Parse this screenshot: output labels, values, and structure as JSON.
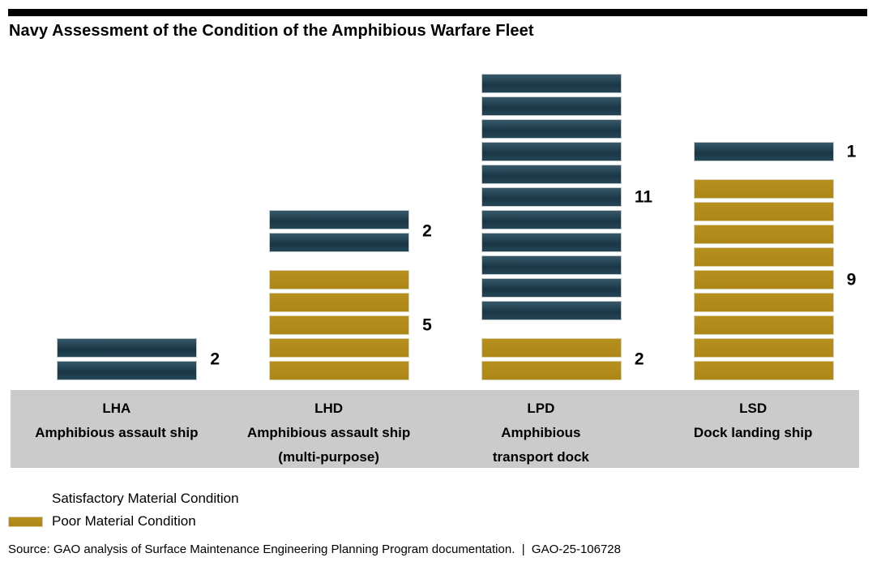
{
  "title": "Navy Assessment of the Condition of the Amphibious Warfare Fleet",
  "source_line": "Source: GAO analysis of Surface Maintenance Engineering Planning Program documentation.  |  GAO-25-106728",
  "report_number": "GAO-25-106728",
  "colors": {
    "satisfactory": "#244656",
    "poor": "#b08a1a",
    "axis_band_background": "#cbcbcb",
    "top_rule": "#000000",
    "background": "#ffffff"
  },
  "legend": {
    "position": "bottom-left",
    "items": [
      {
        "key": "satisfactory",
        "label": "Satisfactory Material Condition",
        "color": "#244656"
      },
      {
        "key": "poor",
        "label": "Poor Material Condition",
        "color": "#b08a1a"
      }
    ]
  },
  "chart_data": {
    "type": "bar",
    "subtype": "stacked-unit-count",
    "orientation": "vertical",
    "unit": "ships (one segment = one ship)",
    "title": "Navy Assessment of the Condition of the Amphibious Warfare Fleet",
    "xlabel": "",
    "ylabel": "",
    "gridlines": false,
    "y_axis_shown": false,
    "value_labels_shown": true,
    "legend_position": "bottom-left",
    "categories": [
      {
        "code": "LHA",
        "name": "Amphibious assault ship",
        "label_lines": [
          "LHA",
          "Amphibious assault ship"
        ]
      },
      {
        "code": "LHD",
        "name": "Amphibious assault ship (multi-purpose)",
        "label_lines": [
          "LHD",
          "Amphibious assault ship",
          "(multi-purpose)"
        ]
      },
      {
        "code": "LPD",
        "name": "Amphibious transport dock",
        "label_lines": [
          "LPD",
          "Amphibious",
          "transport dock"
        ]
      },
      {
        "code": "LSD",
        "name": "Dock landing ship",
        "label_lines": [
          "LSD",
          "Dock landing ship"
        ]
      }
    ],
    "series": [
      {
        "name": "Satisfactory Material Condition",
        "color": "#244656",
        "values": [
          2,
          2,
          11,
          1
        ]
      },
      {
        "name": "Poor Material Condition",
        "color": "#b08a1a",
        "values": [
          0,
          5,
          2,
          9
        ]
      }
    ],
    "totals": [
      2,
      7,
      13,
      10
    ]
  }
}
